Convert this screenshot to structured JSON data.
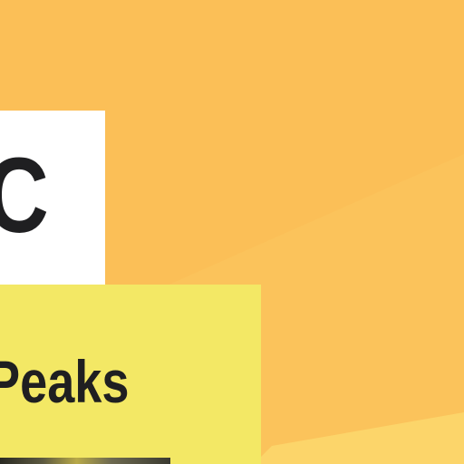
{
  "hero": {
    "letter": "C",
    "title": "Peaks"
  },
  "colors": {
    "background": "#fbbf57",
    "letter_card": "#ffffff",
    "title_card": "#f3e865",
    "text": "#1f1f21"
  }
}
